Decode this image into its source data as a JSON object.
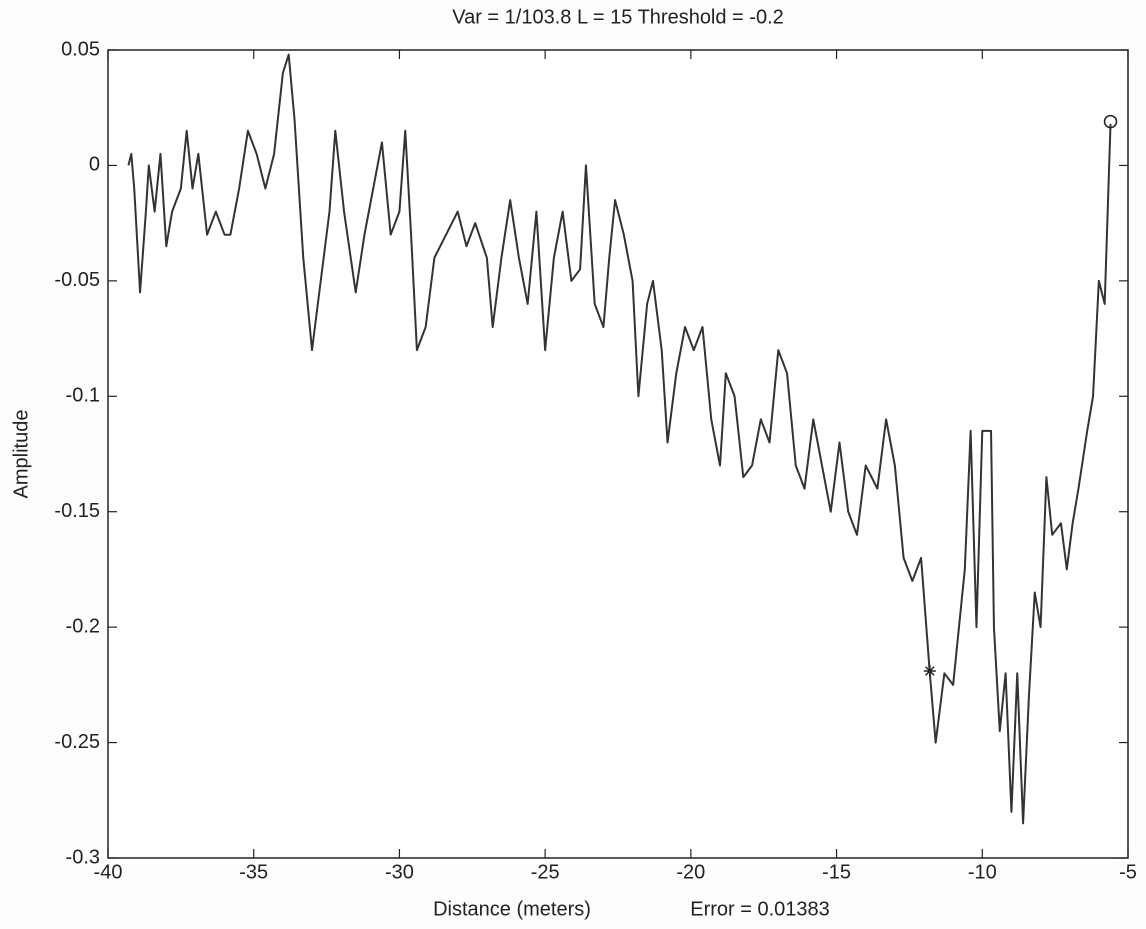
{
  "chart_data": {
    "type": "line",
    "title": "Var = 1/103.8   L = 15  Threshold = -0.2",
    "x_label": "Distance (meters)",
    "y_label": "Amplitude",
    "annotation": "Error =  0.01383",
    "xlim": [
      -40,
      -5
    ],
    "xticks": [
      -40,
      -35,
      -30,
      -25,
      -20,
      -15,
      -10,
      -5
    ],
    "ylim": [
      -0.3,
      0.05
    ],
    "yticks": [
      -0.3,
      -0.25,
      -0.2,
      -0.15,
      -0.1,
      -0.05,
      0,
      0.05
    ],
    "grid": false,
    "series": [
      {
        "color": "#333333",
        "x": [
          -39.3,
          -39.2,
          -39.1,
          -38.9,
          -38.7,
          -38.6,
          -38.4,
          -38.2,
          -38.0,
          -37.8,
          -37.5,
          -37.3,
          -37.1,
          -36.9,
          -36.6,
          -36.3,
          -36.0,
          -35.8,
          -35.5,
          -35.2,
          -34.9,
          -34.6,
          -34.3,
          -34.0,
          -33.8,
          -33.6,
          -33.3,
          -33.0,
          -32.7,
          -32.4,
          -32.2,
          -31.9,
          -31.5,
          -31.2,
          -30.9,
          -30.6,
          -30.3,
          -30.0,
          -29.8,
          -29.6,
          -29.4,
          -29.1,
          -28.8,
          -28.4,
          -28.0,
          -27.7,
          -27.4,
          -27.0,
          -26.8,
          -26.5,
          -26.2,
          -25.9,
          -25.6,
          -25.3,
          -25.0,
          -24.7,
          -24.4,
          -24.1,
          -23.8,
          -23.6,
          -23.3,
          -23.0,
          -22.8,
          -22.6,
          -22.3,
          -22.0,
          -21.8,
          -21.5,
          -21.3,
          -21.0,
          -20.8,
          -20.5,
          -20.2,
          -19.9,
          -19.6,
          -19.3,
          -19.0,
          -18.8,
          -18.5,
          -18.2,
          -17.9,
          -17.6,
          -17.3,
          -17.0,
          -16.7,
          -16.4,
          -16.1,
          -15.8,
          -15.5,
          -15.2,
          -14.9,
          -14.6,
          -14.3,
          -14.0,
          -13.6,
          -13.3,
          -13.0,
          -12.7,
          -12.4,
          -12.1,
          -11.8,
          -11.6,
          -11.3,
          -11.0,
          -10.8,
          -10.6,
          -10.4,
          -10.2,
          -10.0,
          -9.7,
          -9.6,
          -9.4,
          -9.2,
          -9.0,
          -8.8,
          -8.6,
          -8.4,
          -8.2,
          -8.0,
          -7.8,
          -7.6,
          -7.3,
          -7.1,
          -6.9,
          -6.7,
          -6.4,
          -6.2,
          -6.0,
          -5.8,
          -5.6
        ],
        "values": [
          0.0,
          0.005,
          -0.01,
          -0.055,
          -0.02,
          0.0,
          -0.02,
          0.005,
          -0.035,
          -0.02,
          -0.01,
          0.015,
          -0.01,
          0.005,
          -0.03,
          -0.02,
          -0.03,
          -0.03,
          -0.01,
          0.015,
          0.005,
          -0.01,
          0.005,
          0.04,
          0.048,
          0.02,
          -0.04,
          -0.08,
          -0.05,
          -0.02,
          0.015,
          -0.02,
          -0.055,
          -0.03,
          -0.01,
          0.01,
          -0.03,
          -0.02,
          0.015,
          -0.03,
          -0.08,
          -0.07,
          -0.04,
          -0.03,
          -0.02,
          -0.035,
          -0.025,
          -0.04,
          -0.07,
          -0.04,
          -0.015,
          -0.04,
          -0.06,
          -0.02,
          -0.08,
          -0.04,
          -0.02,
          -0.05,
          -0.045,
          0.0,
          -0.06,
          -0.07,
          -0.04,
          -0.015,
          -0.03,
          -0.05,
          -0.1,
          -0.06,
          -0.05,
          -0.08,
          -0.12,
          -0.09,
          -0.07,
          -0.08,
          -0.07,
          -0.11,
          -0.13,
          -0.09,
          -0.1,
          -0.135,
          -0.13,
          -0.11,
          -0.12,
          -0.08,
          -0.09,
          -0.13,
          -0.14,
          -0.11,
          -0.13,
          -0.15,
          -0.12,
          -0.15,
          -0.16,
          -0.13,
          -0.14,
          -0.11,
          -0.13,
          -0.17,
          -0.18,
          -0.17,
          -0.22,
          -0.25,
          -0.22,
          -0.225,
          -0.2,
          -0.175,
          -0.115,
          -0.2,
          -0.115,
          -0.115,
          -0.2,
          -0.245,
          -0.22,
          -0.28,
          -0.22,
          -0.285,
          -0.23,
          -0.185,
          -0.2,
          -0.135,
          -0.16,
          -0.155,
          -0.175,
          -0.155,
          -0.14,
          -0.115,
          -0.1,
          -0.05,
          -0.06,
          0.018
        ]
      }
    ],
    "points": [
      {
        "x": -11.8,
        "y": -0.219,
        "marker": "star"
      },
      {
        "x": -5.6,
        "y": 0.019,
        "marker": "circle"
      }
    ]
  }
}
